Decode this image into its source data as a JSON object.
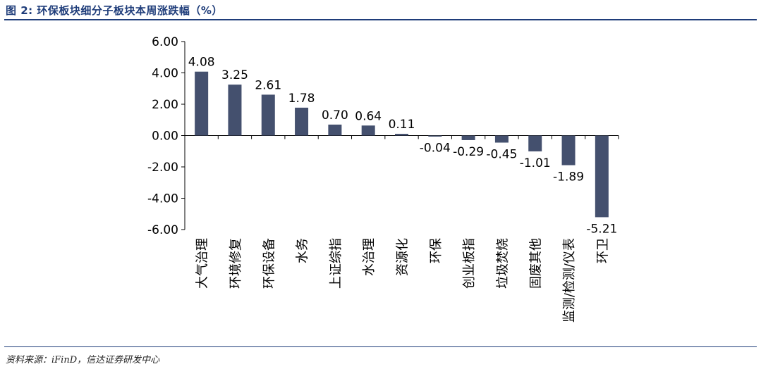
{
  "title": "图 2:  环保板块细分子板块本周涨跌幅（%）",
  "source": "资料来源：iFinD，信达证券研发中心",
  "colors": {
    "bar": "#44506e",
    "rule": "#1f3d7a"
  },
  "chart_data": {
    "type": "bar",
    "title": "",
    "xlabel": "",
    "ylabel": "",
    "ylim": [
      -6,
      6
    ],
    "yticks": [
      6,
      4,
      2,
      0,
      -2,
      -4,
      -6
    ],
    "ytick_labels": [
      "6.00",
      "4.00",
      "2.00",
      "0.00",
      "-2.00",
      "-4.00",
      "-6.00"
    ],
    "grid": false,
    "legend": "none",
    "categories": [
      "大气治理",
      "环境修复",
      "环保设备",
      "水务",
      "上证综指",
      "水治理",
      "资源化",
      "环保",
      "创业板指",
      "垃圾焚烧",
      "固废其他",
      "监测/检测/仪表",
      "环卫"
    ],
    "values": [
      4.08,
      3.25,
      2.61,
      1.78,
      0.7,
      0.64,
      0.11,
      -0.04,
      -0.29,
      -0.45,
      -1.01,
      -1.89,
      -5.21
    ],
    "value_labels": [
      "4.08",
      "3.25",
      "2.61",
      "1.78",
      "0.70",
      "0.64",
      "0.11",
      "-0.04",
      "-0.29",
      "-0.45",
      "-1.01",
      "-1.89",
      "-5.21"
    ]
  }
}
